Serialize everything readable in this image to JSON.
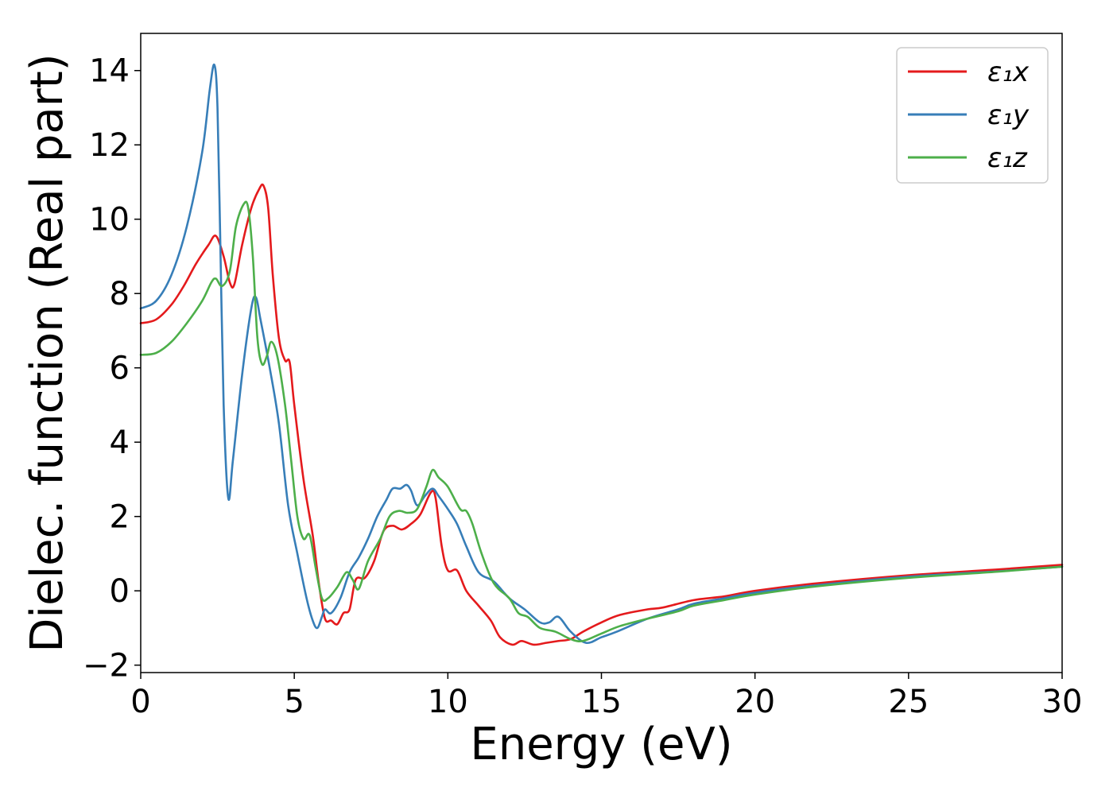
{
  "chart_data": {
    "type": "line",
    "xlabel": "Energy (eV)",
    "ylabel": "Dielec. function (Real part)",
    "xlim": [
      0,
      30
    ],
    "ylim": [
      -2.2,
      15.0
    ],
    "xticks": [
      0,
      5,
      10,
      15,
      20,
      25,
      30
    ],
    "xtick_labels": [
      "0",
      "5",
      "10",
      "15",
      "20",
      "25",
      "30"
    ],
    "yticks": [
      -2,
      0,
      2,
      4,
      6,
      8,
      10,
      12,
      14
    ],
    "ytick_labels": [
      "−2",
      "0",
      "2",
      "4",
      "6",
      "8",
      "10",
      "12",
      "14"
    ],
    "grid": false,
    "legend_position": "top-right",
    "series": [
      {
        "name": "ε₁x",
        "color": "#e41a1c",
        "points": [
          [
            0,
            7.2
          ],
          [
            0.5,
            7.3
          ],
          [
            1.0,
            7.7
          ],
          [
            1.4,
            8.2
          ],
          [
            1.8,
            8.8
          ],
          [
            2.2,
            9.3
          ],
          [
            2.45,
            9.55
          ],
          [
            2.7,
            9.0
          ],
          [
            2.9,
            8.3
          ],
          [
            3.05,
            8.25
          ],
          [
            3.3,
            9.3
          ],
          [
            3.6,
            10.3
          ],
          [
            3.85,
            10.8
          ],
          [
            4.0,
            10.9
          ],
          [
            4.15,
            10.3
          ],
          [
            4.3,
            8.5
          ],
          [
            4.5,
            6.8
          ],
          [
            4.7,
            6.2
          ],
          [
            4.85,
            6.15
          ],
          [
            5.0,
            5.0
          ],
          [
            5.3,
            3.0
          ],
          [
            5.6,
            1.5
          ],
          [
            5.8,
            0.2
          ],
          [
            6.0,
            -0.75
          ],
          [
            6.2,
            -0.8
          ],
          [
            6.4,
            -0.9
          ],
          [
            6.6,
            -0.6
          ],
          [
            6.8,
            -0.5
          ],
          [
            7.0,
            0.3
          ],
          [
            7.3,
            0.35
          ],
          [
            7.6,
            0.8
          ],
          [
            7.9,
            1.6
          ],
          [
            8.2,
            1.75
          ],
          [
            8.5,
            1.65
          ],
          [
            8.8,
            1.8
          ],
          [
            9.1,
            2.05
          ],
          [
            9.45,
            2.65
          ],
          [
            9.6,
            2.5
          ],
          [
            9.8,
            1.2
          ],
          [
            10.0,
            0.55
          ],
          [
            10.3,
            0.55
          ],
          [
            10.6,
            0.0
          ],
          [
            11.0,
            -0.4
          ],
          [
            11.4,
            -0.8
          ],
          [
            11.7,
            -1.25
          ],
          [
            12.1,
            -1.45
          ],
          [
            12.4,
            -1.35
          ],
          [
            12.8,
            -1.45
          ],
          [
            13.2,
            -1.4
          ],
          [
            13.6,
            -1.35
          ],
          [
            14.0,
            -1.3
          ],
          [
            14.4,
            -1.1
          ],
          [
            15.0,
            -0.85
          ],
          [
            15.6,
            -0.65
          ],
          [
            16.5,
            -0.5
          ],
          [
            17.0,
            -0.45
          ],
          [
            18,
            -0.25
          ],
          [
            19,
            -0.15
          ],
          [
            20,
            0.0
          ],
          [
            22,
            0.2
          ],
          [
            25,
            0.42
          ],
          [
            28,
            0.58
          ],
          [
            30,
            0.7
          ]
        ]
      },
      {
        "name": "ε₁y",
        "color": "#377eb8",
        "points": [
          [
            0,
            7.6
          ],
          [
            0.5,
            7.8
          ],
          [
            1.0,
            8.5
          ],
          [
            1.5,
            9.8
          ],
          [
            2.0,
            11.8
          ],
          [
            2.25,
            13.5
          ],
          [
            2.4,
            14.15
          ],
          [
            2.5,
            13.0
          ],
          [
            2.6,
            9.0
          ],
          [
            2.7,
            5.0
          ],
          [
            2.85,
            2.5
          ],
          [
            3.0,
            3.5
          ],
          [
            3.3,
            5.8
          ],
          [
            3.6,
            7.6
          ],
          [
            3.75,
            7.9
          ],
          [
            3.9,
            7.3
          ],
          [
            4.2,
            6.0
          ],
          [
            4.5,
            4.5
          ],
          [
            4.8,
            2.3
          ],
          [
            5.1,
            1.0
          ],
          [
            5.4,
            -0.2
          ],
          [
            5.6,
            -0.8
          ],
          [
            5.75,
            -1.0
          ],
          [
            5.9,
            -0.7
          ],
          [
            6.0,
            -0.5
          ],
          [
            6.2,
            -0.6
          ],
          [
            6.5,
            -0.2
          ],
          [
            6.8,
            0.5
          ],
          [
            7.1,
            0.9
          ],
          [
            7.4,
            1.4
          ],
          [
            7.7,
            2.0
          ],
          [
            8.0,
            2.45
          ],
          [
            8.2,
            2.75
          ],
          [
            8.45,
            2.75
          ],
          [
            8.65,
            2.85
          ],
          [
            8.8,
            2.7
          ],
          [
            9.0,
            2.3
          ],
          [
            9.25,
            2.55
          ],
          [
            9.5,
            2.75
          ],
          [
            9.7,
            2.55
          ],
          [
            10.0,
            2.2
          ],
          [
            10.3,
            1.8
          ],
          [
            10.6,
            1.2
          ],
          [
            11.0,
            0.5
          ],
          [
            11.5,
            0.25
          ],
          [
            12.0,
            -0.2
          ],
          [
            12.5,
            -0.5
          ],
          [
            13.0,
            -0.85
          ],
          [
            13.3,
            -0.85
          ],
          [
            13.6,
            -0.7
          ],
          [
            14.0,
            -1.1
          ],
          [
            14.5,
            -1.4
          ],
          [
            15.0,
            -1.25
          ],
          [
            15.5,
            -1.1
          ],
          [
            16.5,
            -0.75
          ],
          [
            17.5,
            -0.5
          ],
          [
            18,
            -0.35
          ],
          [
            19,
            -0.2
          ],
          [
            20,
            -0.05
          ],
          [
            22,
            0.15
          ],
          [
            25,
            0.38
          ],
          [
            28,
            0.53
          ],
          [
            30,
            0.65
          ]
        ]
      },
      {
        "name": "ε₁z",
        "color": "#4daf4a",
        "points": [
          [
            0,
            6.35
          ],
          [
            0.5,
            6.4
          ],
          [
            1.0,
            6.7
          ],
          [
            1.5,
            7.2
          ],
          [
            2.0,
            7.8
          ],
          [
            2.3,
            8.3
          ],
          [
            2.45,
            8.4
          ],
          [
            2.65,
            8.2
          ],
          [
            2.9,
            8.6
          ],
          [
            3.1,
            9.8
          ],
          [
            3.35,
            10.4
          ],
          [
            3.5,
            10.3
          ],
          [
            3.65,
            9.0
          ],
          [
            3.8,
            6.8
          ],
          [
            3.95,
            6.1
          ],
          [
            4.1,
            6.3
          ],
          [
            4.25,
            6.7
          ],
          [
            4.45,
            6.3
          ],
          [
            4.7,
            5.0
          ],
          [
            4.9,
            3.5
          ],
          [
            5.1,
            2.0
          ],
          [
            5.3,
            1.4
          ],
          [
            5.5,
            1.5
          ],
          [
            5.7,
            0.6
          ],
          [
            5.9,
            -0.2
          ],
          [
            6.1,
            -0.2
          ],
          [
            6.4,
            0.1
          ],
          [
            6.7,
            0.5
          ],
          [
            6.9,
            0.3
          ],
          [
            7.1,
            0.05
          ],
          [
            7.4,
            0.8
          ],
          [
            7.8,
            1.4
          ],
          [
            8.1,
            2.0
          ],
          [
            8.4,
            2.15
          ],
          [
            8.7,
            2.1
          ],
          [
            9.0,
            2.2
          ],
          [
            9.3,
            2.8
          ],
          [
            9.5,
            3.25
          ],
          [
            9.7,
            3.05
          ],
          [
            10.0,
            2.8
          ],
          [
            10.4,
            2.2
          ],
          [
            10.6,
            2.15
          ],
          [
            10.8,
            1.8
          ],
          [
            11.1,
            1.0
          ],
          [
            11.5,
            0.2
          ],
          [
            12.0,
            -0.2
          ],
          [
            12.3,
            -0.6
          ],
          [
            12.6,
            -0.7
          ],
          [
            13.0,
            -1.0
          ],
          [
            13.5,
            -1.1
          ],
          [
            14.0,
            -1.3
          ],
          [
            14.4,
            -1.35
          ],
          [
            15.0,
            -1.15
          ],
          [
            15.6,
            -0.95
          ],
          [
            16.5,
            -0.75
          ],
          [
            17.5,
            -0.55
          ],
          [
            18,
            -0.4
          ],
          [
            19,
            -0.25
          ],
          [
            20,
            -0.1
          ],
          [
            22,
            0.12
          ],
          [
            25,
            0.35
          ],
          [
            28,
            0.52
          ],
          [
            30,
            0.65
          ]
        ]
      }
    ]
  }
}
